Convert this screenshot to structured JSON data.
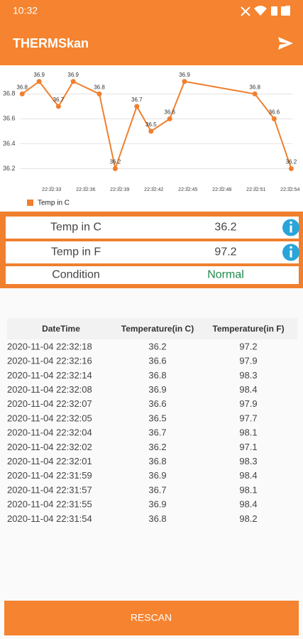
{
  "status_bar": {
    "time": "10:32"
  },
  "app_bar": {
    "title": "THERMSkan"
  },
  "chart_data": {
    "type": "line",
    "x": [
      30.4,
      31.9,
      33.6,
      34.9,
      37.2,
      38.6,
      40.5,
      41.75,
      43.4,
      44.7,
      50.9,
      52.6,
      54.1
    ],
    "series": [
      {
        "name": "Temp in C",
        "color": "#f07f2e",
        "values": [
          36.8,
          36.9,
          36.7,
          36.9,
          36.8,
          36.2,
          36.7,
          36.5,
          36.6,
          36.9,
          36.8,
          36.6,
          36.2
        ]
      }
    ],
    "xlim": [
      30.2,
      54.2
    ],
    "xticks": [
      {
        "value": 33,
        "label": "22:32:33"
      },
      {
        "value": 36,
        "label": "22:32:36"
      },
      {
        "value": 39,
        "label": "22:32:39"
      },
      {
        "value": 42,
        "label": "22:32:42"
      },
      {
        "value": 45,
        "label": "22:32:45"
      },
      {
        "value": 48,
        "label": "22:32:48"
      },
      {
        "value": 51,
        "label": "22:32:51"
      },
      {
        "value": 54,
        "label": "22:32:54"
      }
    ],
    "ylim": [
      36.06,
      37.03
    ],
    "yticks": [
      36.2,
      36.4,
      36.6,
      36.8
    ],
    "grid": true,
    "legend": "bottom-left"
  },
  "readings": [
    {
      "label": "Temp in C",
      "value": "36.2"
    },
    {
      "label": "Temp in F",
      "value": "97.2"
    },
    {
      "label": "Condition",
      "value": "Normal"
    }
  ],
  "table": {
    "headers": [
      "DateTime",
      "Temperature(in C)",
      "Temperature(in F)"
    ],
    "rows": [
      [
        "2020-11-04 22:32:18",
        "36.2",
        "97.2"
      ],
      [
        "2020-11-04 22:32:16",
        "36.6",
        "97.9"
      ],
      [
        "2020-11-04 22:32:14",
        "36.8",
        "98.3"
      ],
      [
        "2020-11-04 22:32:08",
        "36.9",
        "98.4"
      ],
      [
        "2020-11-04 22:32:07",
        "36.6",
        "97.9"
      ],
      [
        "2020-11-04 22:32:05",
        "36.5",
        "97.7"
      ],
      [
        "2020-11-04 22:32:04",
        "36.7",
        "98.1"
      ],
      [
        "2020-11-04 22:32:02",
        "36.2",
        "97.1"
      ],
      [
        "2020-11-04 22:32:01",
        "36.8",
        "98.3"
      ],
      [
        "2020-11-04 22:31:59",
        "36.9",
        "98.4"
      ],
      [
        "2020-11-04 22:31:57",
        "36.7",
        "98.1"
      ],
      [
        "2020-11-04 22:31:55",
        "36.9",
        "98.4"
      ],
      [
        "2020-11-04 22:31:54",
        "36.8",
        "98.2"
      ]
    ]
  },
  "button": {
    "label": "RESCAN"
  }
}
